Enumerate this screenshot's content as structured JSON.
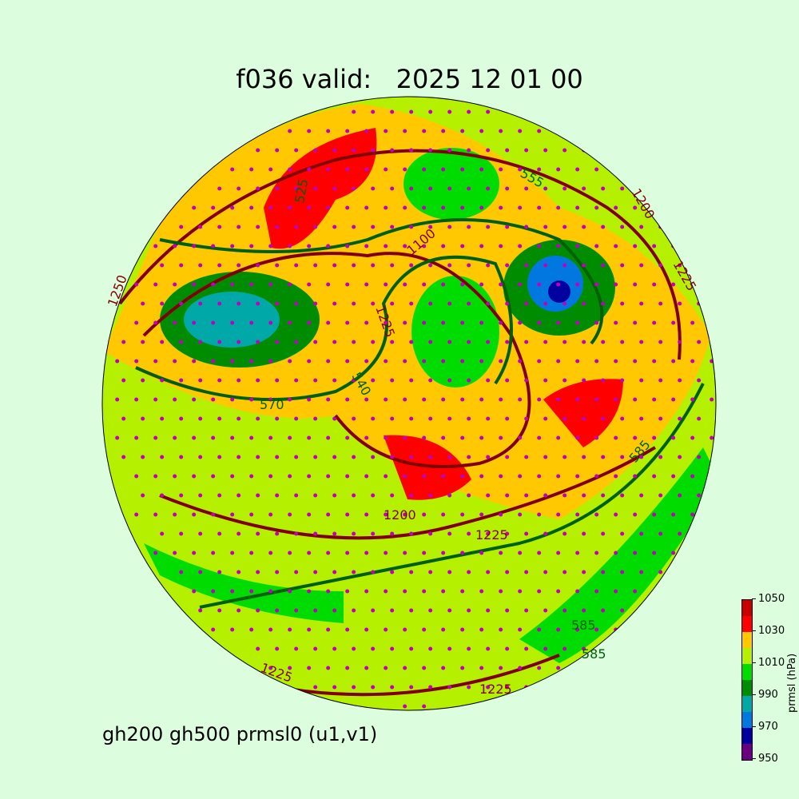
{
  "title": "f036 valid:   2025 12 01 00",
  "subtitle": "gh200 gh500 prmsl0 (u1,v1)",
  "colorbar": {
    "label": "prmsl (hPa)",
    "ticks": [
      "950",
      "970",
      "990",
      "1010",
      "1030",
      "1050"
    ],
    "colors": [
      "#6a0080",
      "#0000a0",
      "#0078e0",
      "#00a8a8",
      "#008c00",
      "#00dc00",
      "#b4f000",
      "#ffc800",
      "#ff0000",
      "#c80000"
    ]
  },
  "contour_labels": {
    "gh200": [
      "1250",
      "1225",
      "1200",
      "1100",
      "1225",
      "1200",
      "1225",
      "1225",
      "1225"
    ],
    "gh500": [
      "540",
      "570",
      "585",
      "555",
      "525",
      "585",
      "585"
    ]
  },
  "colors": {
    "gh200": "#800000",
    "gh500": "#006000",
    "wind_points": "#c000c0",
    "background": "#dcfedf"
  }
}
